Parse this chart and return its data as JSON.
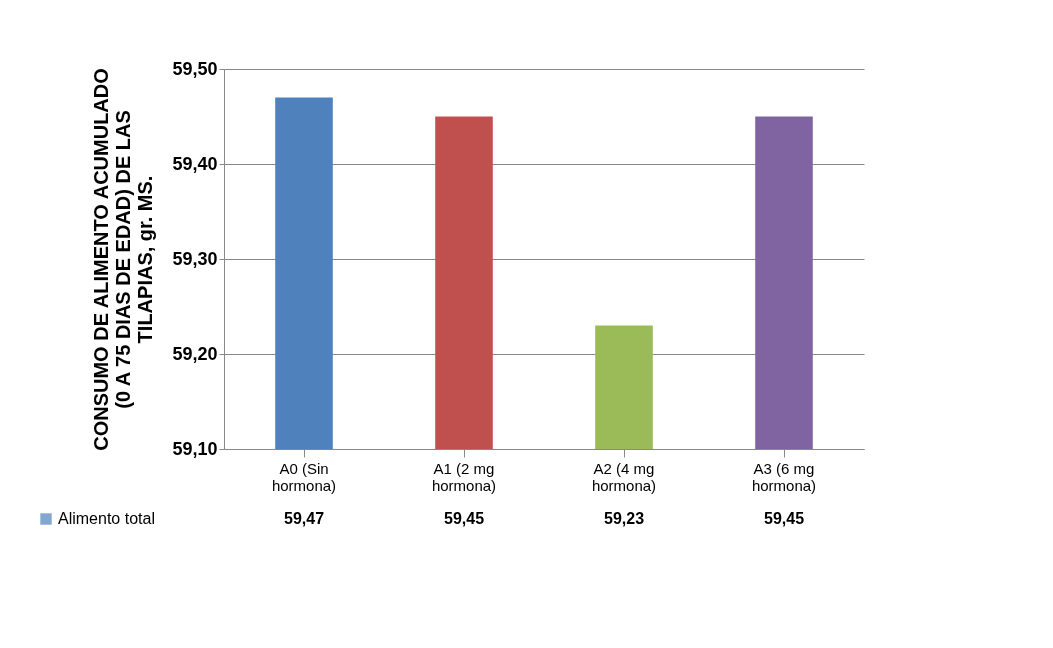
{
  "chart_data": {
    "type": "bar",
    "ylabel": "CONSUMO DE ALIMENTO ACUMULADO (0 A 75 DIAS DE EDAD) DE LAS TILAPIAS,  gr. MS.",
    "categories": [
      "A0 (Sin hormona)",
      "A1 (2 mg hormona)",
      "A2 (4 mg hormona)",
      "A3 (6 mg hormona)"
    ],
    "series": [
      {
        "name": "Alimento total",
        "color": "#4f81bd",
        "colors": [
          "#4f81bd",
          "#c0504d",
          "#9bbb59",
          "#8064a2"
        ],
        "values": [
          59.47,
          59.45,
          59.23,
          59.45
        ],
        "value_labels": [
          "59,47",
          "59,45",
          "59,23",
          "59,45"
        ]
      }
    ],
    "ylim": [
      59.1,
      59.5
    ],
    "yticks": [
      {
        "value": 59.1,
        "label": "59,10"
      },
      {
        "value": 59.2,
        "label": "59,20"
      },
      {
        "value": 59.3,
        "label": "59,30"
      },
      {
        "value": 59.4,
        "label": "59,40"
      },
      {
        "value": 59.5,
        "label": "59,50"
      }
    ],
    "grid": true,
    "legend": "bottom"
  }
}
